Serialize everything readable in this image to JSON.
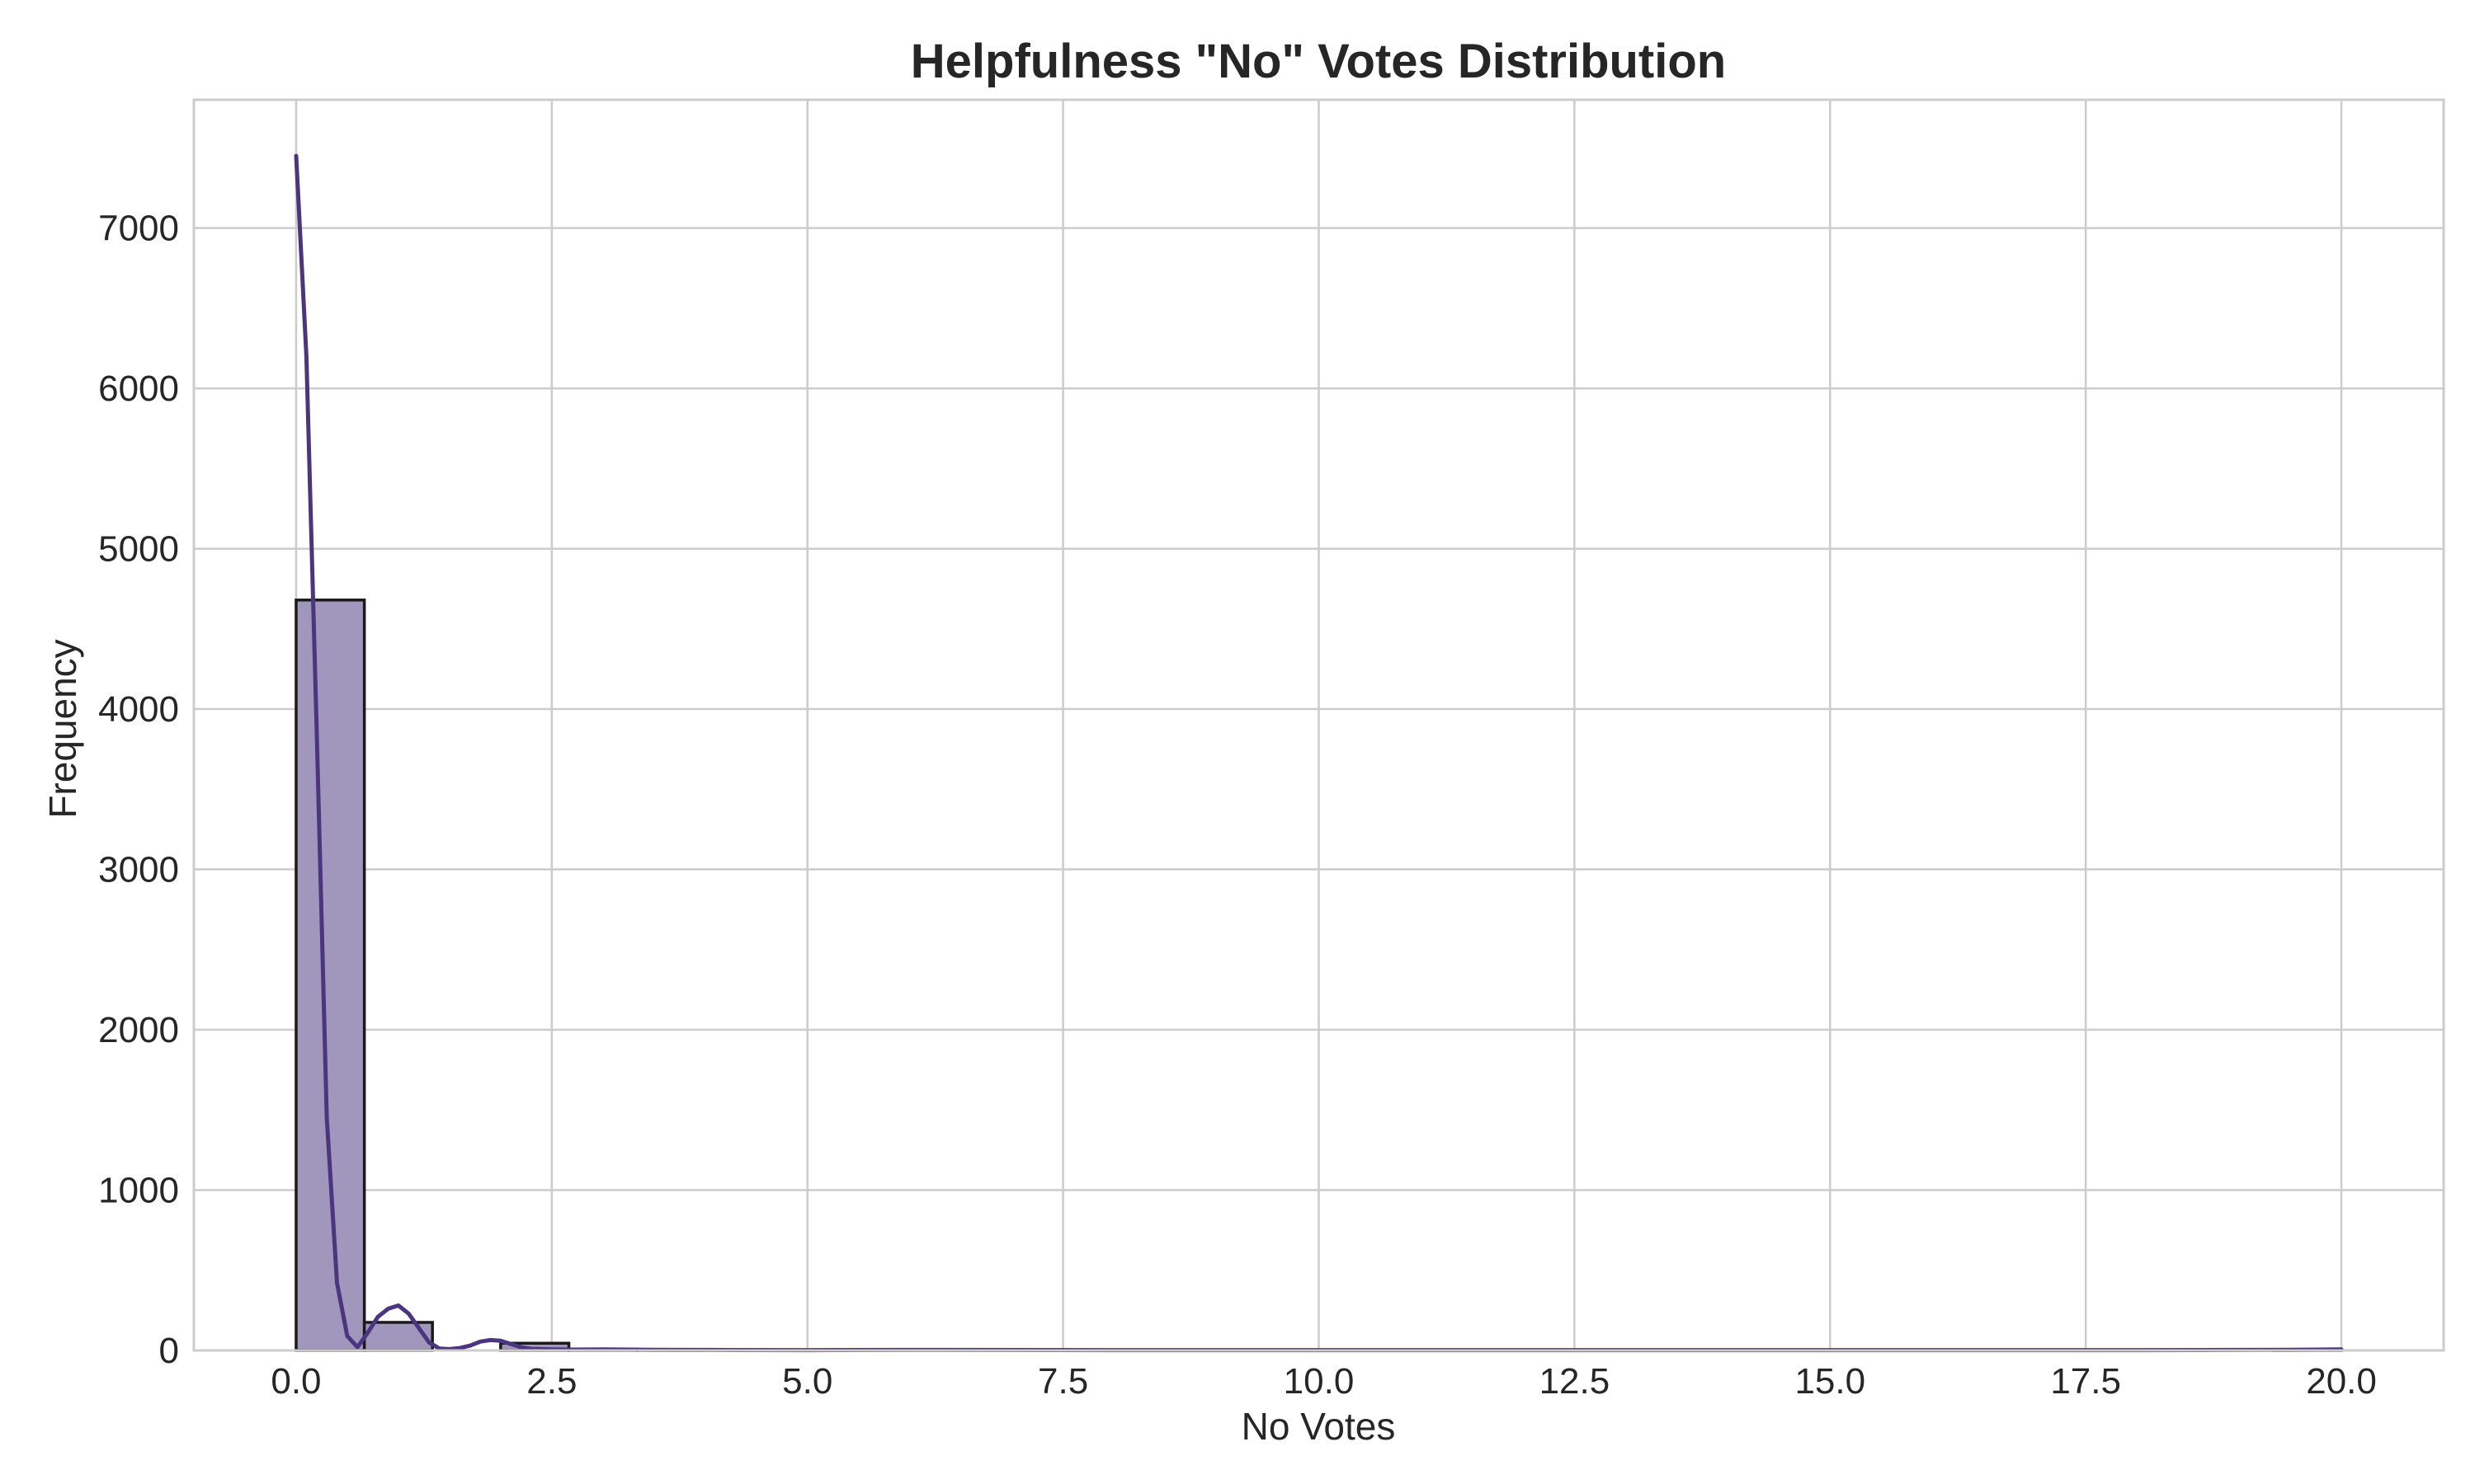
{
  "chart_data": {
    "type": "bar",
    "title": "Helpfulness \"No\" Votes Distribution",
    "xlabel": "No Votes",
    "ylabel": "Frequency",
    "xlim": [
      -1.0,
      21.0
    ],
    "ylim": [
      0,
      7800
    ],
    "xticks": [
      0.0,
      2.5,
      5.0,
      7.5,
      10.0,
      12.5,
      15.0,
      17.5,
      20.0
    ],
    "xtick_labels": [
      "0.0",
      "2.5",
      "5.0",
      "7.5",
      "10.0",
      "12.5",
      "15.0",
      "17.5",
      "20.0"
    ],
    "yticks": [
      0,
      1000,
      2000,
      3000,
      4000,
      5000,
      6000,
      7000
    ],
    "ytick_labels": [
      "0",
      "1000",
      "2000",
      "3000",
      "4000",
      "5000",
      "6000",
      "7000"
    ],
    "grid": true,
    "bins": [
      {
        "x0": 0.0,
        "x1": 0.667,
        "count": 4680
      },
      {
        "x0": 0.667,
        "x1": 1.333,
        "count": 175
      },
      {
        "x0": 1.333,
        "x1": 2.0,
        "count": 0
      },
      {
        "x0": 2.0,
        "x1": 2.667,
        "count": 45
      },
      {
        "x0": 2.667,
        "x1": 3.333,
        "count": 8
      },
      {
        "x0": 3.333,
        "x1": 4.0,
        "count": 3
      },
      {
        "x0": 19.333,
        "x1": 20.0,
        "count": 5
      }
    ],
    "kde": {
      "x": [
        0.0,
        0.1,
        0.2,
        0.3,
        0.4,
        0.5,
        0.6,
        0.7,
        0.8,
        0.9,
        1.0,
        1.1,
        1.2,
        1.3,
        1.4,
        1.5,
        1.6,
        1.7,
        1.8,
        1.9,
        2.0,
        2.1,
        2.2,
        2.3,
        2.5,
        2.7,
        3.0,
        3.5,
        4.0,
        5.0,
        6.0,
        8.0,
        10.0,
        12.0,
        14.0,
        16.0,
        18.0,
        19.0,
        19.5,
        20.0
      ],
      "y": [
        7450,
        6200,
        3900,
        1450,
        420,
        90,
        20,
        110,
        210,
        260,
        280,
        230,
        140,
        50,
        12,
        8,
        15,
        30,
        55,
        65,
        60,
        40,
        20,
        10,
        6,
        5,
        6,
        4,
        3,
        2,
        3,
        2,
        2,
        2,
        2,
        2,
        2,
        3,
        4,
        6
      ]
    },
    "colors": {
      "bar_fill": "#a197bd",
      "bar_edge": "#1a1a1a",
      "kde_line": "#4b357e",
      "grid": "#cccccc",
      "spine": "#cccccc",
      "text": "#262626"
    }
  }
}
